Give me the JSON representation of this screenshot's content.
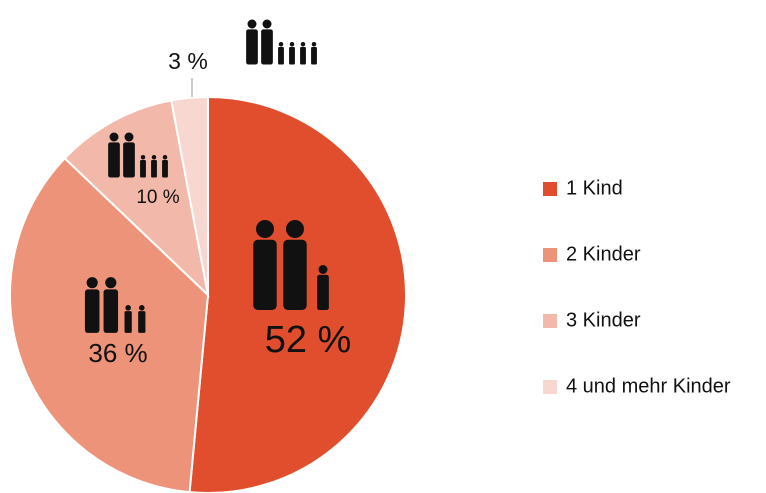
{
  "chart_data": {
    "type": "pie",
    "categories": [
      "1 Kind",
      "2 Kinder",
      "3 Kinder",
      "4 und mehr Kinder"
    ],
    "values": [
      52,
      36,
      10,
      3
    ],
    "value_labels": [
      "52 %",
      "36 %",
      "10 %",
      "3 %"
    ],
    "colors": [
      "#e04e2e",
      "#ec937a",
      "#f2b9ab",
      "#f8d7d0"
    ],
    "legend": "right"
  }
}
